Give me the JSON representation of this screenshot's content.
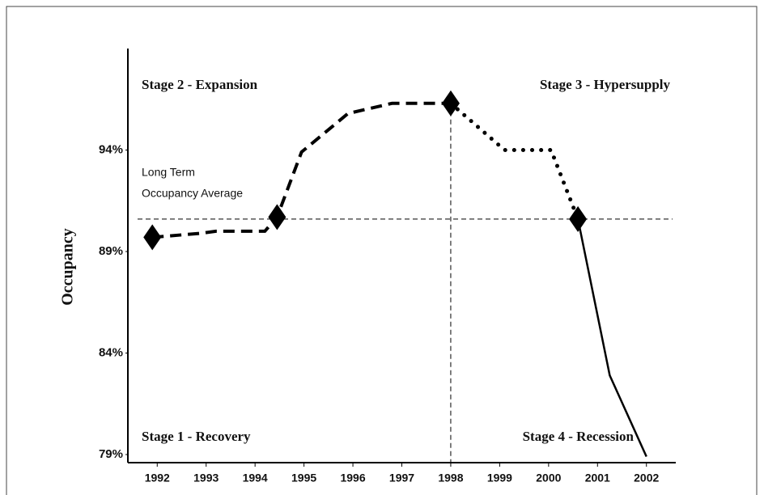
{
  "chart_data": {
    "type": "line",
    "y_label": "Occupancy",
    "annotations": [
      "Stage 2 - Expansion",
      "Stage 3 - Hypersupply",
      "Long Term",
      "Occupancy Average",
      "Stage 1 - Recovery",
      "Stage 4 - Recession"
    ],
    "xlim": [
      1991.4,
      2002.6
    ],
    "xticks": [
      1992,
      1993,
      1994,
      1995,
      1996,
      1997,
      1998,
      1999,
      2000,
      2001,
      2002
    ],
    "ylim": [
      78.6,
      99
    ],
    "yticks": [
      {
        "value": 79,
        "label": "79%"
      },
      {
        "value": 84,
        "label": "84%"
      },
      {
        "value": 89,
        "label": "89%"
      },
      {
        "value": 94,
        "label": "94%"
      }
    ],
    "hline": 90.6,
    "vline": 1998,
    "color": "#000000",
    "series": [
      {
        "style": "dashed",
        "x": [
          1991.9,
          1992.9,
          1993.2,
          1994.2,
          1994.45,
          1994.95,
          1995.9,
          1996.8,
          1998.0
        ],
        "values": [
          89.7,
          89.9,
          90.0,
          90.0,
          90.7,
          93.9,
          95.8,
          96.3,
          96.3
        ]
      },
      {
        "style": "dotted",
        "x": [
          1998.0,
          1999.1,
          2000.05,
          2000.6
        ],
        "values": [
          96.3,
          94.0,
          94.0,
          90.6
        ]
      },
      {
        "style": "solid",
        "x": [
          2000.6,
          2001.25,
          2002.0
        ],
        "values": [
          90.6,
          82.9,
          78.9
        ]
      }
    ],
    "points": {
      "x": [
        1991.9,
        1994.45,
        1998.0,
        2000.6
      ],
      "values": [
        89.7,
        90.7,
        96.3,
        90.6
      ]
    }
  }
}
